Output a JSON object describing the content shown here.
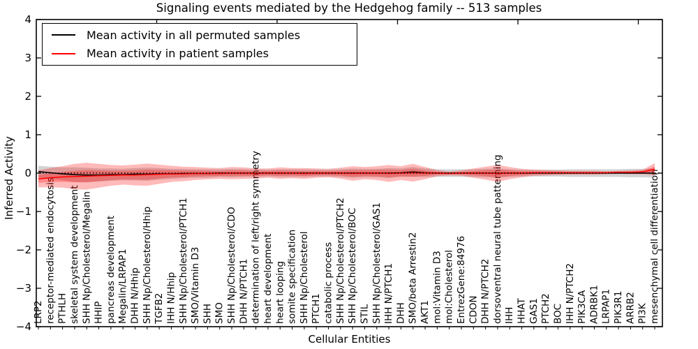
{
  "title": "Signaling events mediated by the Hedgehog family -- 513 samples",
  "axes": {
    "xlabel": "Cellular Entities",
    "ylabel": "Inferred Activity",
    "ytick_labels": [
      "4",
      "3",
      "2",
      "1",
      "0",
      "−1",
      "−2",
      "−3",
      "−4"
    ]
  },
  "legend": {
    "position": "upper left",
    "entries": [
      {
        "label": "Mean activity in all permuted samples",
        "color": "#000000"
      },
      {
        "label": "Mean activity in patient samples",
        "color": "#ff0000"
      }
    ]
  },
  "colors": {
    "permuted_line": "#000000",
    "patient_line": "#ff0000",
    "permuted_band": "rgba(128,128,128,0.35)",
    "patient_band": "rgba(255,0,0,0.27)",
    "zero_line": "#000000",
    "frame": "#000000"
  },
  "chart_data": {
    "type": "line",
    "title": "Signaling events mediated by the Hedgehog family -- 513 samples",
    "xlabel": "Cellular Entities",
    "ylabel": "Inferred Activity",
    "ylim": [
      -4,
      4
    ],
    "yticks": [
      -4,
      -3,
      -2,
      -1,
      0,
      1,
      2,
      3,
      4
    ],
    "top_xticks": [
      10,
      20,
      30,
      40,
      50
    ],
    "grid": false,
    "legend_position": "upper left",
    "zero_line": {
      "y": 0,
      "style": "dotted",
      "color": "#000000"
    },
    "categories": [
      "LRP2",
      "receptor-mediated endocytosis",
      "PTHLH",
      "skeletal system development",
      "SHH Np/Cholesterol/Megalin",
      "HHIP",
      "pancreas development",
      "Megalin/LRPAP1",
      "DHH N/Hhip",
      "SHH Np/Cholesterol/Hhip",
      "TGFB2",
      "IHH N/Hhip",
      "SHH Np/Cholesterol/PTCH1",
      "SMO/Vitamin D3",
      "SHH",
      "SMO",
      "SHH Np/Cholesterol/CDO",
      "DHH N/PTCH1",
      "determination of left/right symmetry",
      "heart development",
      "heart looping",
      "somite specification",
      "SHH Np/Cholesterol",
      "PTCH1",
      "catabolic process",
      "SHH Np/Cholesterol/PTCH2",
      "SHH Np/Cholesterol/BOC",
      "STIL",
      "SHH Np/Cholesterol/GAS1",
      "IHH N/PTCH1",
      "DHH",
      "SMO/beta Arrestin2",
      "AKT1",
      "mol:Vitamin D3",
      "mol:Cholesterol",
      "EntrezGene:84976",
      "CDON",
      "DHH N/PTCH2",
      "dorsoventral neural tube patterning",
      "IHH",
      "HHAT",
      "GAS1",
      "PTCH2",
      "BOC",
      "IHH N/PTCH2",
      "PIK3CA",
      "ADRBK1",
      "LRPAP1",
      "PIK3R1",
      "ARRB2",
      "PI3K",
      "mesenchymal cell differentiation"
    ],
    "series": [
      {
        "name": "Mean activity in all permuted samples",
        "color": "#000000",
        "style": "solid",
        "values": [
          0.04,
          0.01,
          -0.02,
          -0.04,
          -0.05,
          -0.05,
          -0.04,
          -0.04,
          -0.03,
          -0.03,
          -0.02,
          -0.02,
          -0.01,
          -0.01,
          -0.01,
          0,
          0,
          0,
          0,
          0,
          0,
          0,
          0,
          0,
          0,
          0,
          0,
          0,
          0,
          0,
          0.01,
          0.03,
          0.01,
          0,
          0,
          0,
          0,
          0,
          0,
          0,
          0,
          0,
          0,
          0,
          0,
          0,
          0,
          0,
          0,
          0,
          0,
          0
        ]
      },
      {
        "name": "Mean activity in patient samples",
        "color": "#ff0000",
        "style": "solid",
        "values": [
          -0.15,
          -0.12,
          -0.1,
          -0.09,
          -0.08,
          -0.07,
          -0.06,
          -0.05,
          -0.05,
          -0.04,
          -0.03,
          -0.02,
          -0.02,
          -0.01,
          -0.01,
          -0.01,
          0,
          0,
          -0.01,
          0,
          0,
          0,
          -0.01,
          0,
          0,
          0,
          -0.01,
          0,
          0,
          -0.01,
          0,
          0.01,
          0,
          0,
          -0.01,
          0,
          0,
          0,
          -0.01,
          0,
          0,
          0.01,
          0.01,
          0.01,
          0.01,
          0.01,
          0.01,
          0.01,
          0.02,
          0.02,
          0.03,
          0.1
        ]
      }
    ],
    "bands": [
      {
        "name": "permuted-std-band",
        "series": 0,
        "color": "rgba(128,128,128,0.35)",
        "halfwidths": [
          0.15,
          0.16,
          0.17,
          0.19,
          0.19,
          0.17,
          0.16,
          0.15,
          0.16,
          0.17,
          0.15,
          0.13,
          0.12,
          0.11,
          0.11,
          0.1,
          0.11,
          0.1,
          0.1,
          0.09,
          0.1,
          0.1,
          0.1,
          0.09,
          0.09,
          0.1,
          0.12,
          0.11,
          0.11,
          0.13,
          0.11,
          0.13,
          0.11,
          0.1,
          0.1,
          0.1,
          0.1,
          0.11,
          0.12,
          0.1,
          0.09,
          0.09,
          0.09,
          0.09,
          0.1,
          0.1,
          0.1,
          0.1,
          0.1,
          0.11,
          0.11,
          0.12
        ]
      },
      {
        "name": "patient-std-band-outer",
        "series": 1,
        "color": "rgba(255,0,0,0.27)",
        "halfwidths": [
          0.22,
          0.25,
          0.28,
          0.33,
          0.35,
          0.31,
          0.27,
          0.25,
          0.27,
          0.29,
          0.25,
          0.21,
          0.19,
          0.17,
          0.15,
          0.14,
          0.16,
          0.15,
          0.13,
          0.12,
          0.15,
          0.13,
          0.14,
          0.12,
          0.11,
          0.14,
          0.19,
          0.16,
          0.18,
          0.22,
          0.18,
          0.23,
          0.16,
          0.08,
          0.05,
          0.07,
          0.12,
          0.17,
          0.22,
          0.16,
          0.11,
          0.08,
          0.07,
          0.06,
          0.05,
          0.05,
          0.05,
          0.04,
          0.04,
          0.05,
          0.06,
          0.16
        ]
      },
      {
        "name": "patient-std-band-inner",
        "series": 1,
        "color": "rgba(255,0,0,0.27)",
        "ref_band": 1,
        "scale": 0.45
      }
    ]
  }
}
